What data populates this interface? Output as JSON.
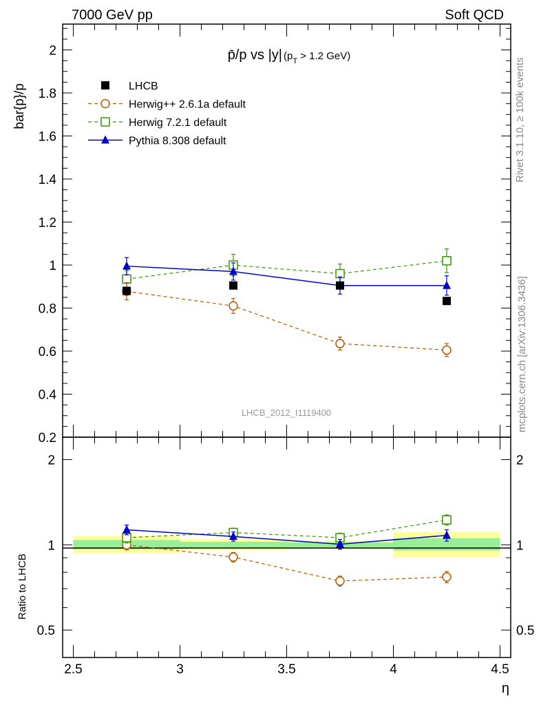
{
  "header": {
    "left": "7000 GeV pp",
    "right": "Soft QCD"
  },
  "side_labels": {
    "rivet": "Rivet 3.1.10, ≥ 100k events",
    "mcplots": "mcplots.cern.ch [arXiv:1306.3436]"
  },
  "chart_data": [
    {
      "type": "line",
      "title_main": "p̄/p vs |y|",
      "title_sub": "(p_T > 1.2 GeV)",
      "title_sub_a": "(p",
      "title_sub_t": "T",
      "title_sub_b": " > 1.2 GeV)",
      "ylabel": "bar{p}/p",
      "xlabel": "",
      "analysis": "LHCB_2012_I1119400",
      "ylim": [
        0.2,
        2.12
      ],
      "xlim": [
        2.45,
        4.55
      ],
      "y_ticks": [
        0.2,
        0.4,
        0.6,
        0.8,
        1,
        1.2,
        1.4,
        1.6,
        1.8,
        2
      ],
      "y_tick_labels": [
        "0.2",
        "0.4",
        "0.6",
        "0.8",
        "1",
        "1.2",
        "1.4",
        "1.6",
        "1.8",
        "2"
      ],
      "legend": "top-left",
      "series": [
        {
          "name": "LHCB",
          "style": "data",
          "marker": "filled-square",
          "color": "#000000",
          "x": [
            2.75,
            3.25,
            3.75,
            4.25
          ],
          "values": [
            0.88,
            0.905,
            0.905,
            0.833
          ],
          "err": [
            0.01,
            0.01,
            0.01,
            0.01
          ]
        },
        {
          "name": "Herwig++ 2.6.1a default",
          "style": "dashed",
          "marker": "open-circle",
          "color": "#b35900",
          "x": [
            2.75,
            3.25,
            3.75,
            4.25
          ],
          "values": [
            0.878,
            0.81,
            0.635,
            0.605
          ],
          "err": [
            0.04,
            0.035,
            0.03,
            0.03
          ]
        },
        {
          "name": "Herwig 7.2.1 default",
          "style": "dashed",
          "marker": "open-square",
          "color": "#339900",
          "x": [
            2.75,
            3.25,
            3.75,
            4.25
          ],
          "values": [
            0.935,
            1.0,
            0.96,
            1.02
          ],
          "err": [
            0.04,
            0.05,
            0.045,
            0.055
          ]
        },
        {
          "name": "Pythia 8.308 default",
          "style": "solid",
          "marker": "filled-triangle",
          "color": "#0000cc",
          "x": [
            2.75,
            3.25,
            3.75,
            4.25
          ],
          "values": [
            0.995,
            0.97,
            0.905,
            0.905
          ],
          "err": [
            0.04,
            0.04,
            0.04,
            0.045
          ]
        }
      ]
    },
    {
      "type": "line",
      "ylabel": "Ratio to LHCB",
      "xlabel": "η",
      "ylim": [
        0.4,
        2.4
      ],
      "scale": "log",
      "xlim": [
        2.45,
        4.55
      ],
      "x_ticks": [
        2.5,
        3,
        3.5,
        4,
        4.5
      ],
      "x_tick_labels": [
        "2.5",
        "3",
        "3.5",
        "4",
        "4.5"
      ],
      "y_ticks": [
        0.5,
        1,
        2
      ],
      "y_tick_labels": [
        "0.5",
        "1",
        "2"
      ],
      "bands": [
        {
          "x0": 2.5,
          "x1": 3.0,
          "yellow": [
            0.935,
            1.075
          ],
          "green": [
            0.965,
            1.04
          ]
        },
        {
          "x0": 3.0,
          "x1": 3.5,
          "yellow": [
            0.955,
            1.045
          ],
          "green": [
            0.975,
            1.025
          ]
        },
        {
          "x0": 3.5,
          "x1": 4.0,
          "yellow": [
            0.965,
            1.035
          ],
          "green": [
            0.98,
            1.02
          ]
        },
        {
          "x0": 4.0,
          "x1": 4.5,
          "yellow": [
            0.905,
            1.11
          ],
          "green": [
            0.955,
            1.055
          ]
        }
      ],
      "series": [
        {
          "name": "Herwig++ 2.6.1a default",
          "style": "dashed",
          "marker": "open-circle",
          "color": "#b35900",
          "x": [
            2.75,
            3.25,
            3.75,
            4.25
          ],
          "values": [
            1.0,
            0.905,
            0.745,
            0.77
          ],
          "err": [
            0.04,
            0.035,
            0.03,
            0.035
          ]
        },
        {
          "name": "Herwig 7.2.1 default",
          "style": "dashed",
          "marker": "open-square",
          "color": "#339900",
          "x": [
            2.75,
            3.25,
            3.75,
            4.25
          ],
          "values": [
            1.06,
            1.105,
            1.06,
            1.225
          ],
          "err": [
            0.045,
            0.04,
            0.04,
            0.05
          ]
        },
        {
          "name": "Pythia 8.308 default",
          "style": "solid",
          "marker": "filled-triangle",
          "color": "#0000cc",
          "x": [
            2.75,
            3.25,
            3.75,
            4.25
          ],
          "values": [
            1.13,
            1.07,
            1.005,
            1.08
          ],
          "err": [
            0.045,
            0.04,
            0.04,
            0.05
          ]
        }
      ]
    }
  ]
}
